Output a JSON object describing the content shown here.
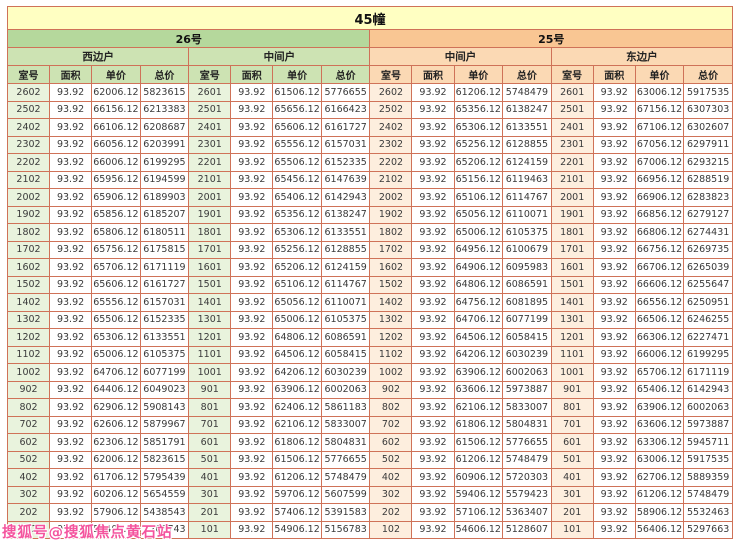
{
  "watermark": {
    "text": "搜狐号@搜狐焦点黄石站"
  },
  "colors": {
    "border": "#cf7258",
    "title_bg": "#ffffc2",
    "b26_bg": "#b5d89c",
    "b25_bg": "#f9c693",
    "b26_sub_bg": "#cde3b3",
    "b25_sub_bg": "#fbd9b4",
    "room26_bg": "#e9f3dd",
    "room25_bg": "#fdeede",
    "watermark": "#f4549e"
  },
  "chart_data": {
    "type": "table",
    "title": "45幢",
    "buildings": [
      {
        "name": "26号",
        "unit_types": [
          "西边户",
          "中间户"
        ]
      },
      {
        "name": "25号",
        "unit_types": [
          "中间户",
          "东边户"
        ]
      }
    ],
    "columns": [
      "室号",
      "面积",
      "单价",
      "总价"
    ],
    "rows": [
      [
        "2602",
        "93.92",
        "62006.12",
        "5823615",
        "2601",
        "93.92",
        "61506.12",
        "5776655",
        "2602",
        "93.92",
        "61206.12",
        "5748479",
        "2601",
        "93.92",
        "63006.12",
        "5917535"
      ],
      [
        "2502",
        "93.92",
        "66156.12",
        "6213383",
        "2501",
        "93.92",
        "65656.12",
        "6166423",
        "2502",
        "93.92",
        "65356.12",
        "6138247",
        "2501",
        "93.92",
        "67156.12",
        "6307303"
      ],
      [
        "2402",
        "93.92",
        "66106.12",
        "6208687",
        "2401",
        "93.92",
        "65606.12",
        "6161727",
        "2402",
        "93.92",
        "65306.12",
        "6133551",
        "2401",
        "93.92",
        "67106.12",
        "6302607"
      ],
      [
        "2302",
        "93.92",
        "66056.12",
        "6203991",
        "2301",
        "93.92",
        "65556.12",
        "6157031",
        "2302",
        "93.92",
        "65256.12",
        "6128855",
        "2301",
        "93.92",
        "67056.12",
        "6297911"
      ],
      [
        "2202",
        "93.92",
        "66006.12",
        "6199295",
        "2201",
        "93.92",
        "65506.12",
        "6152335",
        "2202",
        "93.92",
        "65206.12",
        "6124159",
        "2201",
        "93.92",
        "67006.12",
        "6293215"
      ],
      [
        "2102",
        "93.92",
        "65956.12",
        "6194599",
        "2101",
        "93.92",
        "65456.12",
        "6147639",
        "2102",
        "93.92",
        "65156.12",
        "6119463",
        "2101",
        "93.92",
        "66956.12",
        "6288519"
      ],
      [
        "2002",
        "93.92",
        "65906.12",
        "6189903",
        "2001",
        "93.92",
        "65406.12",
        "6142943",
        "2002",
        "93.92",
        "65106.12",
        "6114767",
        "2001",
        "93.92",
        "66906.12",
        "6283823"
      ],
      [
        "1902",
        "93.92",
        "65856.12",
        "6185207",
        "1901",
        "93.92",
        "65356.12",
        "6138247",
        "1902",
        "93.92",
        "65056.12",
        "6110071",
        "1901",
        "93.92",
        "66856.12",
        "6279127"
      ],
      [
        "1802",
        "93.92",
        "65806.12",
        "6180511",
        "1801",
        "93.92",
        "65306.12",
        "6133551",
        "1802",
        "93.92",
        "65006.12",
        "6105375",
        "1801",
        "93.92",
        "66806.12",
        "6274431"
      ],
      [
        "1702",
        "93.92",
        "65756.12",
        "6175815",
        "1701",
        "93.92",
        "65256.12",
        "6128855",
        "1702",
        "93.92",
        "64956.12",
        "6100679",
        "1701",
        "93.92",
        "66756.12",
        "6269735"
      ],
      [
        "1602",
        "93.92",
        "65706.12",
        "6171119",
        "1601",
        "93.92",
        "65206.12",
        "6124159",
        "1602",
        "93.92",
        "64906.12",
        "6095983",
        "1601",
        "93.92",
        "66706.12",
        "6265039"
      ],
      [
        "1502",
        "93.92",
        "65606.12",
        "6161727",
        "1501",
        "93.92",
        "65106.12",
        "6114767",
        "1502",
        "93.92",
        "64806.12",
        "6086591",
        "1501",
        "93.92",
        "66606.12",
        "6255647"
      ],
      [
        "1402",
        "93.92",
        "65556.12",
        "6157031",
        "1401",
        "93.92",
        "65056.12",
        "6110071",
        "1402",
        "93.92",
        "64756.12",
        "6081895",
        "1401",
        "93.92",
        "66556.12",
        "6250951"
      ],
      [
        "1302",
        "93.92",
        "65506.12",
        "6152335",
        "1301",
        "93.92",
        "65006.12",
        "6105375",
        "1302",
        "93.92",
        "64706.12",
        "6077199",
        "1301",
        "93.92",
        "66506.12",
        "6246255"
      ],
      [
        "1202",
        "93.92",
        "65306.12",
        "6133551",
        "1201",
        "93.92",
        "64806.12",
        "6086591",
        "1202",
        "93.92",
        "64506.12",
        "6058415",
        "1201",
        "93.92",
        "66306.12",
        "6227471"
      ],
      [
        "1102",
        "93.92",
        "65006.12",
        "6105375",
        "1101",
        "93.92",
        "64506.12",
        "6058415",
        "1102",
        "93.92",
        "64206.12",
        "6030239",
        "1101",
        "93.92",
        "66006.12",
        "6199295"
      ],
      [
        "1002",
        "93.92",
        "64706.12",
        "6077199",
        "1001",
        "93.92",
        "64206.12",
        "6030239",
        "1002",
        "93.92",
        "63906.12",
        "6002063",
        "1001",
        "93.92",
        "65706.12",
        "6171119"
      ],
      [
        "902",
        "93.92",
        "64406.12",
        "6049023",
        "901",
        "93.92",
        "63906.12",
        "6002063",
        "902",
        "93.92",
        "63606.12",
        "5973887",
        "901",
        "93.92",
        "65406.12",
        "6142943"
      ],
      [
        "802",
        "93.92",
        "62906.12",
        "5908143",
        "801",
        "93.92",
        "62406.12",
        "5861183",
        "802",
        "93.92",
        "62106.12",
        "5833007",
        "801",
        "93.92",
        "63906.12",
        "6002063"
      ],
      [
        "702",
        "93.92",
        "62606.12",
        "5879967",
        "701",
        "93.92",
        "62106.12",
        "5833007",
        "702",
        "93.92",
        "61806.12",
        "5804831",
        "701",
        "93.92",
        "63606.12",
        "5973887"
      ],
      [
        "602",
        "93.92",
        "62306.12",
        "5851791",
        "601",
        "93.92",
        "61806.12",
        "5804831",
        "602",
        "93.92",
        "61506.12",
        "5776655",
        "601",
        "93.92",
        "63306.12",
        "5945711"
      ],
      [
        "502",
        "93.92",
        "62006.12",
        "5823615",
        "501",
        "93.92",
        "61506.12",
        "5776655",
        "502",
        "93.92",
        "61206.12",
        "5748479",
        "501",
        "93.92",
        "63006.12",
        "5917535"
      ],
      [
        "402",
        "93.92",
        "61706.12",
        "5795439",
        "401",
        "93.92",
        "61206.12",
        "5748479",
        "402",
        "93.92",
        "60906.12",
        "5720303",
        "401",
        "93.92",
        "62706.12",
        "5889359"
      ],
      [
        "302",
        "93.92",
        "60206.12",
        "5654559",
        "301",
        "93.92",
        "59706.12",
        "5607599",
        "302",
        "93.92",
        "59406.12",
        "5579423",
        "301",
        "93.92",
        "61206.12",
        "5748479"
      ],
      [
        "202",
        "93.92",
        "57906.12",
        "5438543",
        "201",
        "93.92",
        "57406.12",
        "5391583",
        "202",
        "93.92",
        "57106.12",
        "5363407",
        "201",
        "93.92",
        "58906.12",
        "5532463"
      ],
      [
        "102",
        "93.92",
        "55406.12",
        "5203743",
        "101",
        "93.92",
        "54906.12",
        "5156783",
        "102",
        "93.92",
        "54606.12",
        "5128607",
        "101",
        "93.92",
        "56406.12",
        "5297663"
      ]
    ]
  }
}
